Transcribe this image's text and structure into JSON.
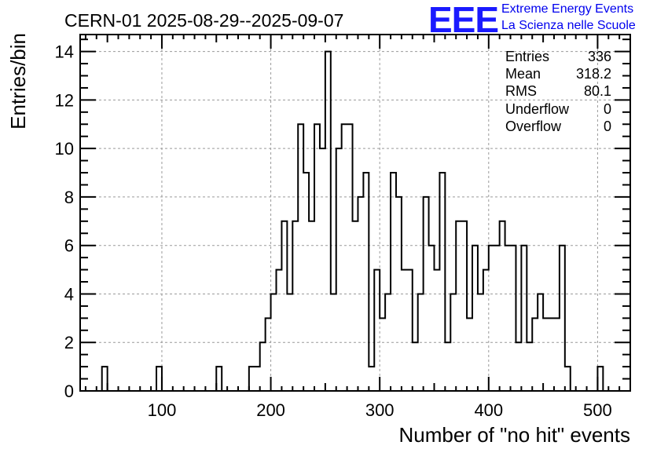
{
  "title": "CERN-01 2025-08-29--2025-09-07",
  "logo": {
    "mark": "EEE",
    "line1": "Extreme Energy Events",
    "line2": "La Scienza nelle Scuole",
    "color": "#1a1aff"
  },
  "stats": [
    {
      "label": "Entries",
      "value": "336"
    },
    {
      "label": "Mean",
      "value": "318.2"
    },
    {
      "label": "RMS",
      "value": "80.1"
    },
    {
      "label": "Underflow",
      "value": "0"
    },
    {
      "label": "Overflow",
      "value": "0"
    }
  ],
  "chart_data": {
    "type": "bar",
    "style": "step-histogram",
    "title": "CERN-01 2025-08-29--2025-09-07",
    "xlabel": "Number of \"no hit\" events",
    "ylabel": "Entries/bin",
    "xlim": [
      25,
      530
    ],
    "ylim": [
      0,
      14.7
    ],
    "bin_width": 5,
    "x_ticks": [
      100,
      200,
      300,
      400,
      500
    ],
    "y_ticks": [
      0,
      2,
      4,
      6,
      8,
      10,
      12,
      14
    ],
    "grid": true,
    "line_color": "#000000",
    "bins": [
      {
        "x": 45,
        "y": 1
      },
      {
        "x": 95,
        "y": 1
      },
      {
        "x": 150,
        "y": 1
      },
      {
        "x": 180,
        "y": 1
      },
      {
        "x": 185,
        "y": 1
      },
      {
        "x": 190,
        "y": 2
      },
      {
        "x": 195,
        "y": 3
      },
      {
        "x": 200,
        "y": 4
      },
      {
        "x": 205,
        "y": 5
      },
      {
        "x": 210,
        "y": 7
      },
      {
        "x": 215,
        "y": 4
      },
      {
        "x": 220,
        "y": 7
      },
      {
        "x": 225,
        "y": 11
      },
      {
        "x": 230,
        "y": 9
      },
      {
        "x": 235,
        "y": 7
      },
      {
        "x": 240,
        "y": 11
      },
      {
        "x": 245,
        "y": 10
      },
      {
        "x": 250,
        "y": 14
      },
      {
        "x": 255,
        "y": 4
      },
      {
        "x": 260,
        "y": 10
      },
      {
        "x": 265,
        "y": 11
      },
      {
        "x": 270,
        "y": 11
      },
      {
        "x": 275,
        "y": 7
      },
      {
        "x": 280,
        "y": 8
      },
      {
        "x": 285,
        "y": 9
      },
      {
        "x": 290,
        "y": 1
      },
      {
        "x": 295,
        "y": 5
      },
      {
        "x": 300,
        "y": 3
      },
      {
        "x": 305,
        "y": 4
      },
      {
        "x": 310,
        "y": 9
      },
      {
        "x": 315,
        "y": 8
      },
      {
        "x": 320,
        "y": 5
      },
      {
        "x": 325,
        "y": 5
      },
      {
        "x": 330,
        "y": 2
      },
      {
        "x": 335,
        "y": 4
      },
      {
        "x": 340,
        "y": 8
      },
      {
        "x": 345,
        "y": 6
      },
      {
        "x": 350,
        "y": 5
      },
      {
        "x": 355,
        "y": 9
      },
      {
        "x": 360,
        "y": 2
      },
      {
        "x": 365,
        "y": 4
      },
      {
        "x": 370,
        "y": 7
      },
      {
        "x": 375,
        "y": 7
      },
      {
        "x": 380,
        "y": 3
      },
      {
        "x": 385,
        "y": 6
      },
      {
        "x": 390,
        "y": 4
      },
      {
        "x": 395,
        "y": 5
      },
      {
        "x": 400,
        "y": 6
      },
      {
        "x": 405,
        "y": 6
      },
      {
        "x": 410,
        "y": 7
      },
      {
        "x": 415,
        "y": 6
      },
      {
        "x": 420,
        "y": 6
      },
      {
        "x": 425,
        "y": 2
      },
      {
        "x": 430,
        "y": 6
      },
      {
        "x": 435,
        "y": 2
      },
      {
        "x": 440,
        "y": 3
      },
      {
        "x": 445,
        "y": 4
      },
      {
        "x": 450,
        "y": 3
      },
      {
        "x": 455,
        "y": 3
      },
      {
        "x": 460,
        "y": 3
      },
      {
        "x": 465,
        "y": 6
      },
      {
        "x": 470,
        "y": 1
      },
      {
        "x": 500,
        "y": 1
      }
    ]
  }
}
